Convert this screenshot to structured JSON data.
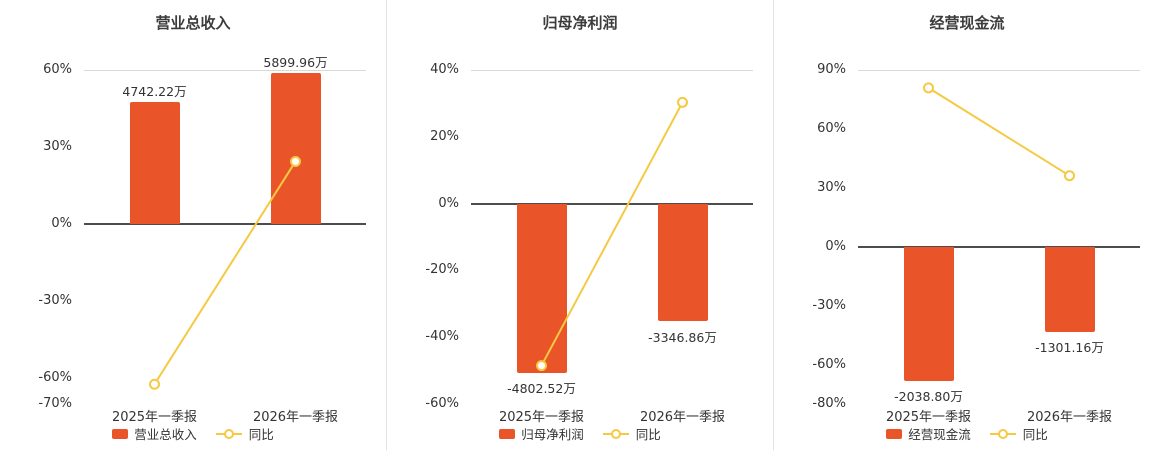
{
  "colors": {
    "bar": "#e95528",
    "line": "#f5c942",
    "marker_fill": "#ffffff",
    "zero_line": "#4d4d4d",
    "grid_line": "#d9d9d9",
    "divider": "#e3e3e3",
    "title_text": "#3c3c3c",
    "axis_text": "#333333"
  },
  "chart_data": [
    {
      "type": "bar-line-combo",
      "title": "营业总收入",
      "categories": [
        "2025年一季报",
        "2026年一季报"
      ],
      "ylim": [
        -70,
        60
      ],
      "yticks": [
        60,
        30,
        0,
        -30,
        -60,
        -70
      ],
      "ytick_labels": [
        "60%",
        "30%",
        "0%",
        "-30%",
        "-60%",
        "-70%"
      ],
      "grid": "top-and-zero-lines",
      "legend_position": "bottom-center",
      "bar_series": {
        "name": "营业总收入",
        "unit": "万",
        "values": [
          4742.22,
          5899.96
        ],
        "labels": [
          "4742.22万",
          "5899.96万"
        ],
        "plot_pct": [
          47.4,
          59.0
        ]
      },
      "line_series": {
        "name": "同比",
        "unit": "%",
        "values_pct": [
          -62.3,
          24.4
        ]
      }
    },
    {
      "type": "bar-line-combo",
      "title": "归母净利润",
      "categories": [
        "2025年一季报",
        "2026年一季报"
      ],
      "ylim": [
        -60,
        40
      ],
      "yticks": [
        40,
        20,
        0,
        -20,
        -40,
        -60
      ],
      "ytick_labels": [
        "40%",
        "20%",
        "0%",
        "-20%",
        "-40%",
        "-60%"
      ],
      "grid": "top-and-zero-lines",
      "legend_position": "bottom-center",
      "bar_series": {
        "name": "归母净利润",
        "unit": "万",
        "values": [
          -4802.52,
          -3346.86
        ],
        "labels": [
          "-4802.52万",
          "-3346.86万"
        ],
        "plot_pct": [
          -50.6,
          -35.3
        ]
      },
      "line_series": {
        "name": "同比",
        "unit": "%",
        "values_pct": [
          -48.5,
          30.3
        ]
      }
    },
    {
      "type": "bar-line-combo",
      "title": "经营现金流",
      "categories": [
        "2025年一季报",
        "2026年一季报"
      ],
      "ylim": [
        -80,
        90
      ],
      "yticks": [
        90,
        60,
        30,
        0,
        -30,
        -60,
        -80
      ],
      "ytick_labels": [
        "90%",
        "60%",
        "30%",
        "0%",
        "-30%",
        "-60%",
        "-80%"
      ],
      "grid": "top-and-zero-lines",
      "legend_position": "bottom-center",
      "bar_series": {
        "name": "经营现金流",
        "unit": "万",
        "values": [
          -2038.8,
          -1301.16
        ],
        "labels": [
          "-2038.80万",
          "-1301.16万"
        ],
        "plot_pct": [
          -68.4,
          -43.6
        ]
      },
      "line_series": {
        "name": "同比",
        "unit": "%",
        "values_pct": [
          80.9,
          36.2
        ]
      }
    }
  ]
}
